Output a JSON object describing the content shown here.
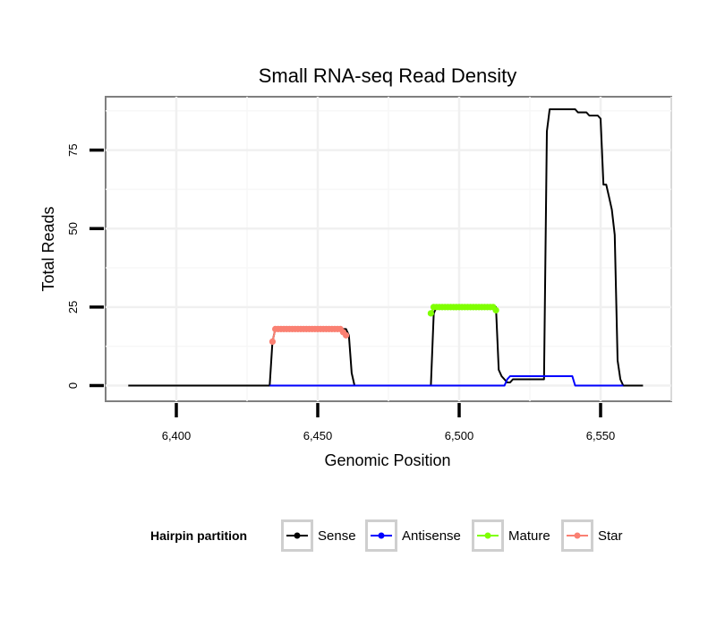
{
  "chart_data": {
    "type": "line",
    "title": "Small RNA-seq Read Density",
    "xlabel": "Genomic Position",
    "ylabel": "Total Reads",
    "xlim": [
      6375,
      6575
    ],
    "ylim": [
      -5,
      92
    ],
    "x_ticks": [
      {
        "value": 6400,
        "label": "6,400"
      },
      {
        "value": 6450,
        "label": "6,450"
      },
      {
        "value": 6500,
        "label": "6,500"
      },
      {
        "value": 6550,
        "label": "6,550"
      }
    ],
    "y_ticks": [
      {
        "value": 0,
        "label": "0"
      },
      {
        "value": 25,
        "label": "25"
      },
      {
        "value": 50,
        "label": "50"
      },
      {
        "value": 75,
        "label": "75"
      }
    ],
    "grid": true,
    "legend": {
      "title": "Hairpin partition",
      "position": "bottom",
      "entries": [
        "Sense",
        "Antisense",
        "Mature",
        "Star"
      ]
    },
    "series": [
      {
        "name": "Sense",
        "color": "#000000",
        "style": "line",
        "x": [
          6383,
          6433,
          6434,
          6435,
          6460,
          6461,
          6462,
          6463,
          6490,
          6491,
          6492,
          6513,
          6514,
          6515,
          6517,
          6518,
          6519,
          6520,
          6521,
          6530,
          6531,
          6532,
          6541,
          6542,
          6545,
          6546,
          6549,
          6550,
          6551,
          6552,
          6553,
          6554,
          6555,
          6556,
          6557,
          6558,
          6559,
          6565
        ],
        "y": [
          0,
          0,
          14,
          18,
          18,
          16,
          4,
          0,
          0,
          23,
          25,
          25,
          5,
          3,
          1,
          1,
          2,
          2,
          2,
          2,
          81,
          88,
          88,
          87,
          87,
          86,
          86,
          85,
          64,
          64,
          60,
          56,
          48,
          8,
          2,
          0,
          0,
          0
        ]
      },
      {
        "name": "Antisense",
        "color": "#0000ff",
        "style": "line",
        "x": [
          6433,
          6516,
          6517,
          6518,
          6519,
          6520,
          6540,
          6541,
          6558
        ],
        "y": [
          0,
          0,
          2,
          3,
          3,
          3,
          3,
          0,
          0
        ]
      },
      {
        "name": "Mature",
        "color": "#7fff00",
        "style": "line-points",
        "x": [
          6490,
          6491,
          6492,
          6493,
          6494,
          6495,
          6496,
          6497,
          6498,
          6499,
          6500,
          6501,
          6502,
          6503,
          6504,
          6505,
          6506,
          6507,
          6508,
          6509,
          6510,
          6511,
          6512,
          6513
        ],
        "y": [
          23,
          25,
          25,
          25,
          25,
          25,
          25,
          25,
          25,
          25,
          25,
          25,
          25,
          25,
          25,
          25,
          25,
          25,
          25,
          25,
          25,
          25,
          25,
          24
        ]
      },
      {
        "name": "Star",
        "color": "#fa8072",
        "style": "line-points",
        "x": [
          6434,
          6435,
          6436,
          6437,
          6438,
          6439,
          6440,
          6441,
          6442,
          6443,
          6444,
          6445,
          6446,
          6447,
          6448,
          6449,
          6450,
          6451,
          6452,
          6453,
          6454,
          6455,
          6456,
          6457,
          6458,
          6459,
          6460
        ],
        "y": [
          14,
          18,
          18,
          18,
          18,
          18,
          18,
          18,
          18,
          18,
          18,
          18,
          18,
          18,
          18,
          18,
          18,
          18,
          18,
          18,
          18,
          18,
          18,
          18,
          18,
          17,
          16
        ]
      }
    ]
  }
}
